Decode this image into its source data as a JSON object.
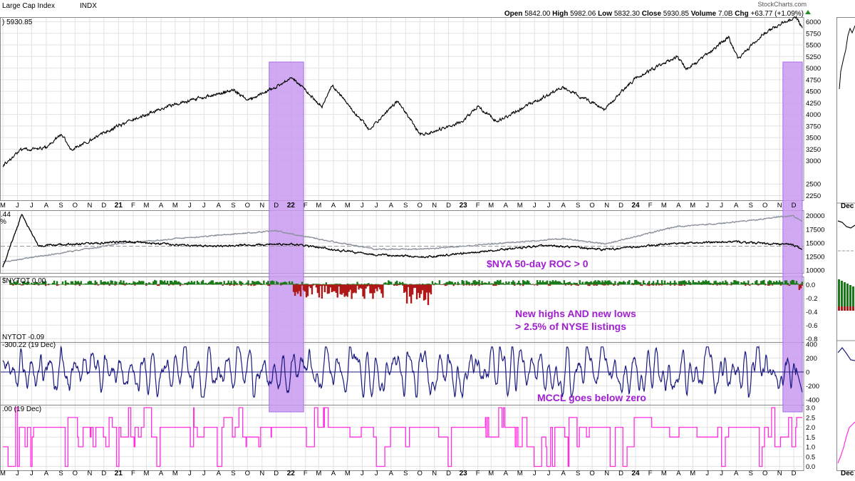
{
  "header": {
    "title": "Large Cap Index",
    "symbol_tag": "INDX",
    "brand": "StockCharts.com",
    "ohlc": [
      {
        "k": "Open",
        "v": "5842.00"
      },
      {
        "k": "High",
        "v": "5982.06"
      },
      {
        "k": "Low",
        "v": "5832.30"
      },
      {
        "k": "Close",
        "v": "5930.85"
      },
      {
        "k": "Volume",
        "v": "7.0B"
      },
      {
        "k": "Chg",
        "v": "+63.77 (+1.09%)"
      }
    ]
  },
  "colors": {
    "price": "#000000",
    "highlight": "#c89af0",
    "highlight_edge": "#a96ee8",
    "breadth_gray": "#8a9099",
    "hl_positive": "#1a7a1a",
    "hl_negative": "#b01818",
    "mccl": "#1a1a80",
    "signal": "#ff2ee0",
    "annotation": "#a020d0",
    "grid": "#e2e2e2"
  },
  "chart_data": [
    {
      "id": "price",
      "type": "line",
      "label": "5930.85",
      "y_ticks": [
        2250,
        2500,
        3000,
        3250,
        3500,
        3750,
        4000,
        4250,
        4500,
        4750,
        5000,
        5250,
        5500,
        5750,
        6000
      ],
      "ylim": [
        2150,
        6100
      ],
      "x": [
        "2020-05-01",
        "2020-06-08",
        "2020-08-01",
        "2020-09-02",
        "2020-09-23",
        "2020-12-31",
        "2021-04-15",
        "2021-09-02",
        "2021-10-04",
        "2021-12-31",
        "2022-01-03",
        "2022-03-08",
        "2022-03-29",
        "2022-06-16",
        "2022-08-16",
        "2022-09-30",
        "2022-10-12",
        "2022-12-31",
        "2023-02-02",
        "2023-03-13",
        "2023-07-31",
        "2023-10-27",
        "2023-12-31",
        "2024-03-28",
        "2024-04-19",
        "2024-07-16",
        "2024-08-05",
        "2024-09-30",
        "2024-11-11",
        "2024-12-06",
        "2024-12-19"
      ],
      "y": [
        2900,
        3230,
        3280,
        3580,
        3240,
        3750,
        4180,
        4530,
        4300,
        4760,
        4800,
        4170,
        4630,
        3670,
        4300,
        3590,
        3580,
        3840,
        4180,
        3850,
        4590,
        4120,
        4770,
        5250,
        4970,
        5660,
        5190,
        5760,
        6000,
        6090,
        5870
      ]
    },
    {
      "id": "breadth",
      "type": "line",
      "label": "44",
      "y_ticks": [
        10000,
        12500,
        15000,
        17500,
        20000
      ],
      "ylim": [
        9500,
        21000
      ],
      "series": [
        {
          "x": [
            "2020-05-01",
            "2020-06-10",
            "2020-07-15",
            "2021-01-15",
            "2021-06-30",
            "2021-12-31",
            "2022-06-30",
            "2022-10-12",
            "2023-06-30",
            "2023-10-27",
            "2024-03-28",
            "2024-07-15",
            "2024-11-29",
            "2024-12-19"
          ],
          "values": [
            10500,
            20300,
            14500,
            15200,
            14400,
            14800,
            12800,
            12400,
            14600,
            13800,
            14900,
            15200,
            14700,
            13700
          ]
        },
        {
          "x": [
            "2020-05-01",
            "2021-01-15",
            "2021-06-30",
            "2021-11-30",
            "2022-06-30",
            "2022-10-12",
            "2023-07-31",
            "2023-10-27",
            "2024-03-28",
            "2024-07-15",
            "2024-11-29",
            "2024-12-19"
          ],
          "values": [
            11500,
            15000,
            16200,
            17200,
            13800,
            13900,
            15800,
            14800,
            18000,
            18700,
            20000,
            18900
          ]
        }
      ],
      "reference_line": 14400,
      "annotation": "$NYA 50-day ROC > 0"
    },
    {
      "id": "highs_lows",
      "type": "bar",
      "label": "$NYTOT 0.00",
      "y_ticks": [
        0.0,
        -0.2,
        -0.4,
        -0.6,
        -0.8
      ],
      "ylim": [
        -0.85,
        0.12
      ],
      "annotation": [
        "New highs AND new lows",
        "> 2.5% of NYSE listings"
      ]
    },
    {
      "id": "mccl",
      "type": "line",
      "label": "-300.22 (19 Dec)",
      "label_prefix": "NYTOT -0.09",
      "y_ticks": [
        400,
        200,
        0,
        -200,
        -400
      ],
      "ylim": [
        -470,
        430
      ],
      "annotation": "MCCL goes below zero"
    },
    {
      "id": "signal",
      "type": "line",
      "label": ".00 (19 Dec)",
      "y_ticks": [
        3.0,
        2.5,
        2.0,
        1.5,
        1.0,
        0.5,
        0.0
      ],
      "ylim": [
        -0.2,
        3.15
      ],
      "step_values": [
        0,
        0.5,
        1,
        1.5,
        2,
        2.5,
        3
      ]
    }
  ],
  "x_axis": {
    "labels": [
      {
        "d": "2020-05-01",
        "t": "M"
      },
      {
        "d": "2020-06-01",
        "t": "J"
      },
      {
        "d": "2020-07-01",
        "t": "J"
      },
      {
        "d": "2020-08-01",
        "t": "A"
      },
      {
        "d": "2020-09-01",
        "t": "S"
      },
      {
        "d": "2020-10-01",
        "t": "O"
      },
      {
        "d": "2020-11-01",
        "t": "N"
      },
      {
        "d": "2020-12-01",
        "t": "D"
      },
      {
        "d": "2021-01-01",
        "t": "21",
        "bold": true
      },
      {
        "d": "2021-02-01",
        "t": "F"
      },
      {
        "d": "2021-03-01",
        "t": "M"
      },
      {
        "d": "2021-04-01",
        "t": "A"
      },
      {
        "d": "2021-05-01",
        "t": "M"
      },
      {
        "d": "2021-06-01",
        "t": "J"
      },
      {
        "d": "2021-07-01",
        "t": "J"
      },
      {
        "d": "2021-08-01",
        "t": "A"
      },
      {
        "d": "2021-09-01",
        "t": "S"
      },
      {
        "d": "2021-10-01",
        "t": "O"
      },
      {
        "d": "2021-11-01",
        "t": "N"
      },
      {
        "d": "2021-12-01",
        "t": "D"
      },
      {
        "d": "2022-01-01",
        "t": "22",
        "bold": true
      },
      {
        "d": "2022-02-01",
        "t": "F"
      },
      {
        "d": "2022-03-01",
        "t": "M"
      },
      {
        "d": "2022-04-01",
        "t": "A"
      },
      {
        "d": "2022-05-01",
        "t": "M"
      },
      {
        "d": "2022-06-01",
        "t": "J"
      },
      {
        "d": "2022-07-01",
        "t": "J"
      },
      {
        "d": "2022-08-01",
        "t": "A"
      },
      {
        "d": "2022-09-01",
        "t": "S"
      },
      {
        "d": "2022-10-01",
        "t": "O"
      },
      {
        "d": "2022-11-01",
        "t": "N"
      },
      {
        "d": "2022-12-01",
        "t": "D"
      },
      {
        "d": "2023-01-01",
        "t": "23",
        "bold": true
      },
      {
        "d": "2023-02-01",
        "t": "F"
      },
      {
        "d": "2023-03-01",
        "t": "M"
      },
      {
        "d": "2023-04-01",
        "t": "A"
      },
      {
        "d": "2023-05-01",
        "t": "M"
      },
      {
        "d": "2023-06-01",
        "t": "J"
      },
      {
        "d": "2023-07-01",
        "t": "J"
      },
      {
        "d": "2023-08-01",
        "t": "A"
      },
      {
        "d": "2023-09-01",
        "t": "S"
      },
      {
        "d": "2023-10-01",
        "t": "O"
      },
      {
        "d": "2023-11-01",
        "t": "N"
      },
      {
        "d": "2023-12-01",
        "t": "D"
      },
      {
        "d": "2024-01-01",
        "t": "24",
        "bold": true
      },
      {
        "d": "2024-02-01",
        "t": "F"
      },
      {
        "d": "2024-03-01",
        "t": "M"
      },
      {
        "d": "2024-04-01",
        "t": "A"
      },
      {
        "d": "2024-05-01",
        "t": "M"
      },
      {
        "d": "2024-06-01",
        "t": "J"
      },
      {
        "d": "2024-07-01",
        "t": "J"
      },
      {
        "d": "2024-08-01",
        "t": "A"
      },
      {
        "d": "2024-09-01",
        "t": "S"
      },
      {
        "d": "2024-10-01",
        "t": "O"
      },
      {
        "d": "2024-11-01",
        "t": "N"
      },
      {
        "d": "2024-12-01",
        "t": "D"
      }
    ]
  },
  "highlights": [
    {
      "from": "2021-11-16",
      "to": "2022-01-28"
    },
    {
      "from": "2024-11-08",
      "to": "2024-12-19"
    }
  ],
  "side_panel": {
    "labels": [
      "Dec",
      "Dec"
    ]
  }
}
